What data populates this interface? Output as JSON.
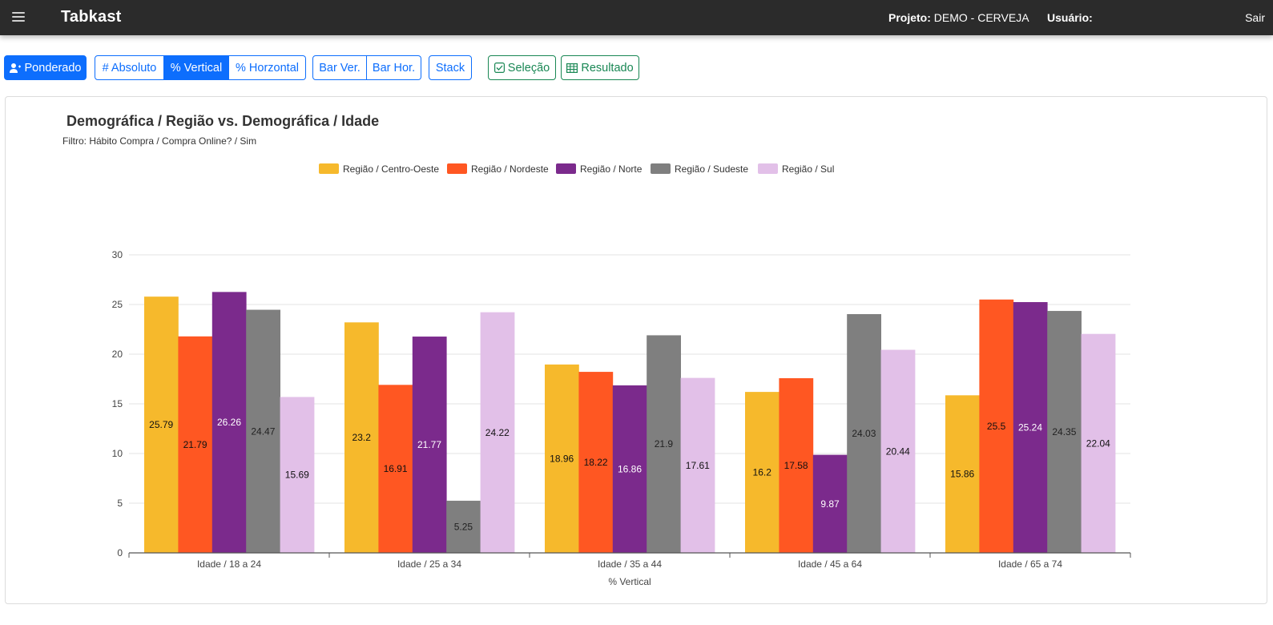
{
  "navbar": {
    "brand": "Tabkast",
    "project_label": "Projeto:",
    "project_value": "DEMO - CERVEJA",
    "user_label": "Usuário:",
    "logout": "Sair"
  },
  "toolbar": {
    "ponderado": "Ponderado",
    "absoluto": "# Absoluto",
    "vertical": "% Vertical",
    "horizontal": "% Horzontal",
    "bar_ver": "Bar Ver.",
    "bar_hor": "Bar Hor.",
    "stack": "Stack",
    "selecao": "Seleção",
    "resultado": "Resultado"
  },
  "colors": {
    "primary": "#0d6efd",
    "success": "#198754",
    "navbar": "#2b2b2b"
  },
  "chart_data": {
    "type": "bar",
    "title": "Demográfica / Região vs. Demográfica / Idade",
    "subtitle": "Filtro: Hábito Compra / Compra Online? / Sim",
    "xlabel": "% Vertical",
    "ylabel": "",
    "ylim": [
      0,
      30
    ],
    "yticks": [
      0,
      5,
      10,
      15,
      20,
      25,
      30
    ],
    "grid": true,
    "legend_position": "top",
    "categories": [
      "Idade / 18 a 24",
      "Idade / 25 a 34",
      "Idade / 35 a 44",
      "Idade / 45 a 64",
      "Idade / 65 a 74"
    ],
    "series": [
      {
        "name": "Região / Centro-Oeste",
        "color": "#f6b92c",
        "label_color": "#111111",
        "values": [
          25.79,
          23.2,
          18.96,
          16.2,
          15.86
        ]
      },
      {
        "name": "Região / Nordeste",
        "color": "#ff5722",
        "label_color": "#111111",
        "values": [
          21.79,
          16.91,
          18.22,
          17.58,
          25.5
        ]
      },
      {
        "name": "Região / Norte",
        "color": "#7b2a8c",
        "label_color": "#ffffff",
        "values": [
          26.26,
          21.77,
          16.86,
          9.87,
          25.24
        ]
      },
      {
        "name": "Região / Sudeste",
        "color": "#7f7f7f",
        "label_color": "#222222",
        "values": [
          24.47,
          5.25,
          21.9,
          24.03,
          24.35
        ]
      },
      {
        "name": "Região / Sul",
        "color": "#e2c0e8",
        "label_color": "#111111",
        "values": [
          15.69,
          24.22,
          17.61,
          20.44,
          22.04
        ]
      }
    ]
  }
}
